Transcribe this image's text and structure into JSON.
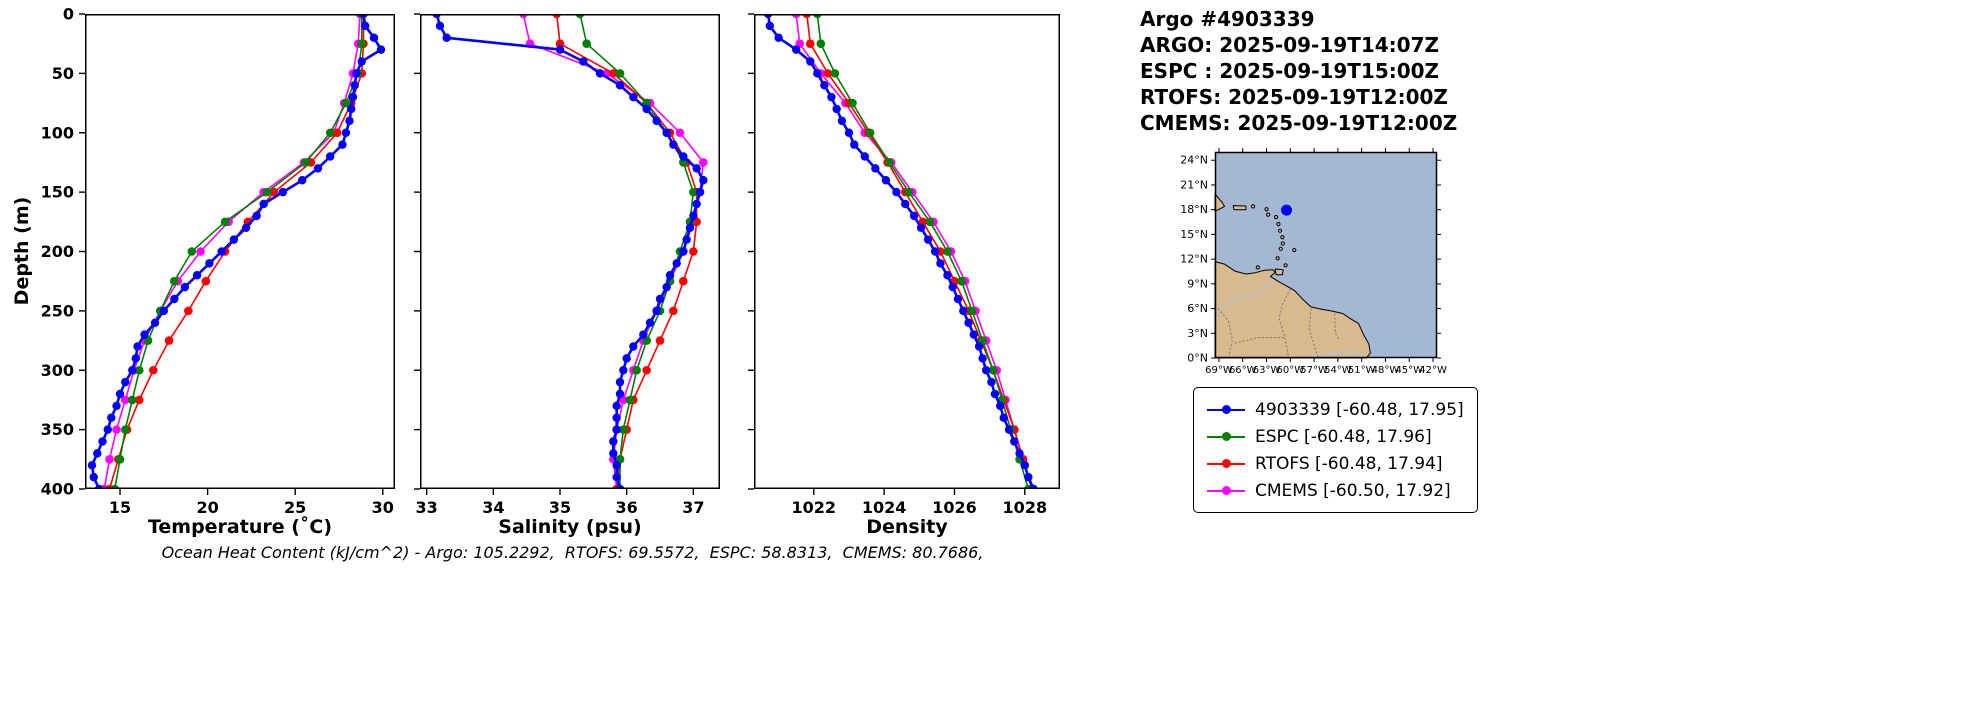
{
  "header": {
    "title": "Argo #4903339",
    "lines": [
      "ARGO: 2025-09-19T14:07Z",
      "ESPC : 2025-09-19T15:00Z",
      "RTOFS: 2025-09-19T12:00Z",
      "CMEMS: 2025-09-19T12:00Z"
    ]
  },
  "footer": {
    "text": "Ocean Heat Content (kJ/cm^2) - Argo: 105.2292,  RTOFS: 69.5572,  ESPC: 58.8313,  CMEMS: 80.7686,"
  },
  "legend": {
    "entries": [
      {
        "label": "4903339 [-60.48, 17.95]",
        "color": "#0000ff"
      },
      {
        "label": "ESPC [-60.48, 17.96]",
        "color": "#008000"
      },
      {
        "label": "RTOFS [-60.48, 17.94]",
        "color": "#ff0000"
      },
      {
        "label": "CMEMS [-60.50, 17.92]",
        "color": "#ff00ff"
      }
    ]
  },
  "chart_data": {
    "type": "line",
    "title": "Argo #4903339",
    "ylabel": "Depth (m)",
    "ylim": [
      0,
      400
    ],
    "yticks": [
      0,
      50,
      100,
      150,
      200,
      250,
      300,
      350,
      400
    ],
    "grid": false,
    "argo_depths": [
      0,
      10,
      20,
      30,
      40,
      50,
      60,
      70,
      80,
      90,
      100,
      110,
      120,
      130,
      140,
      150,
      160,
      170,
      180,
      190,
      200,
      210,
      220,
      230,
      240,
      250,
      260,
      270,
      280,
      290,
      300,
      310,
      320,
      330,
      340,
      350,
      360,
      370,
      380,
      390,
      400
    ],
    "model_depths": [
      0,
      25,
      50,
      75,
      100,
      125,
      150,
      175,
      200,
      225,
      250,
      275,
      300,
      325,
      350,
      375,
      400
    ],
    "panels": [
      {
        "xlabel": "Temperature (˚C)",
        "xlim": [
          13,
          30.7
        ],
        "xticks": [
          15,
          20,
          25,
          30
        ],
        "show_depth_labels": true,
        "series": [
          {
            "name": "4903339",
            "color": "#0000ff",
            "line_width": 2.6,
            "marker_size": 4.2,
            "depths_key": "argo_depths",
            "values": [
              28.9,
              29.0,
              29.5,
              29.9,
              28.8,
              28.5,
              28.4,
              28.3,
              28.2,
              28.1,
              27.9,
              27.7,
              27.0,
              26.3,
              25.4,
              24.3,
              23.2,
              22.8,
              22.2,
              21.5,
              20.8,
              20.1,
              19.4,
              18.7,
              18.1,
              17.5,
              17.0,
              16.4,
              16.0,
              15.9,
              15.7,
              15.3,
              15.0,
              14.8,
              14.5,
              14.3,
              14.0,
              13.7,
              13.4,
              13.5,
              13.8
            ]
          },
          {
            "name": "ESPC",
            "color": "#008000",
            "line_width": 1.6,
            "marker_size": 4.3,
            "depths_key": "model_depths",
            "values": [
              28.8,
              28.8,
              28.6,
              27.9,
              27.0,
              25.6,
              23.4,
              21.0,
              19.1,
              18.1,
              17.3,
              16.6,
              16.1,
              15.7,
              15.3,
              15.0,
              14.7
            ]
          },
          {
            "name": "RTOFS",
            "color": "#ff0000",
            "line_width": 1.6,
            "marker_size": 4.3,
            "depths_key": "model_depths",
            "values": [
              28.9,
              28.9,
              28.8,
              28.2,
              27.4,
              25.9,
              23.8,
              22.3,
              21.0,
              19.9,
              18.9,
              17.8,
              16.9,
              16.1,
              15.4,
              14.9,
              14.4
            ]
          },
          {
            "name": "CMEMS",
            "color": "#ff00ff",
            "line_width": 1.6,
            "marker_size": 4.3,
            "depths_key": "model_depths",
            "values": [
              28.7,
              28.6,
              28.3,
              27.8,
              27.2,
              25.5,
              23.2,
              21.2,
              19.6,
              18.3,
              17.3,
              16.4,
              15.8,
              15.3,
              14.8,
              14.4,
              14.1
            ]
          }
        ]
      },
      {
        "xlabel": "Salinity (psu)",
        "xlim": [
          32.9,
          37.4
        ],
        "xticks": [
          33,
          34,
          35,
          36,
          37
        ],
        "show_depth_labels": false,
        "series": [
          {
            "name": "4903339",
            "color": "#0000ff",
            "line_width": 2.6,
            "marker_size": 4.2,
            "depths_key": "argo_depths",
            "values": [
              33.15,
              33.2,
              33.3,
              35.0,
              35.35,
              35.6,
              35.9,
              36.1,
              36.3,
              36.45,
              36.6,
              36.7,
              36.85,
              37.05,
              37.15,
              37.1,
              37.05,
              37.0,
              36.95,
              36.9,
              36.85,
              36.75,
              36.65,
              36.6,
              36.5,
              36.45,
              36.35,
              36.25,
              36.1,
              36.0,
              35.95,
              35.9,
              35.9,
              35.85,
              35.85,
              35.85,
              35.8,
              35.8,
              35.85,
              35.85,
              35.9
            ]
          },
          {
            "name": "ESPC",
            "color": "#008000",
            "line_width": 1.6,
            "marker_size": 4.3,
            "depths_key": "model_depths",
            "values": [
              35.3,
              35.4,
              35.9,
              36.3,
              36.6,
              36.85,
              37.0,
              36.95,
              36.8,
              36.65,
              36.5,
              36.3,
              36.15,
              36.05,
              35.95,
              35.9,
              35.9
            ]
          },
          {
            "name": "RTOFS",
            "color": "#ff0000",
            "line_width": 1.6,
            "marker_size": 4.3,
            "depths_key": "model_depths",
            "values": [
              34.95,
              35.0,
              35.8,
              36.3,
              36.65,
              36.9,
              37.05,
              37.05,
              37.0,
              36.85,
              36.7,
              36.5,
              36.3,
              36.1,
              36.0,
              35.9,
              35.85
            ]
          },
          {
            "name": "CMEMS",
            "color": "#ff00ff",
            "line_width": 1.6,
            "marker_size": 4.3,
            "depths_key": "model_depths",
            "values": [
              34.45,
              34.55,
              35.7,
              36.35,
              36.8,
              37.15,
              37.1,
              37.0,
              36.85,
              36.65,
              36.45,
              36.25,
              36.1,
              35.95,
              35.85,
              35.8,
              35.85
            ]
          }
        ]
      },
      {
        "xlabel": "Density",
        "xlim": [
          1020.3,
          1029.0
        ],
        "xticks": [
          1022,
          1024,
          1026,
          1028
        ],
        "show_depth_labels": false,
        "series": [
          {
            "name": "4903339",
            "color": "#0000ff",
            "line_width": 2.6,
            "marker_size": 4.2,
            "depths_key": "argo_depths",
            "values": [
              1020.7,
              1020.75,
              1021.0,
              1021.5,
              1021.9,
              1022.1,
              1022.3,
              1022.5,
              1022.65,
              1022.8,
              1023.0,
              1023.15,
              1023.45,
              1023.75,
              1024.05,
              1024.35,
              1024.6,
              1024.85,
              1025.05,
              1025.25,
              1025.45,
              1025.6,
              1025.8,
              1025.95,
              1026.1,
              1026.25,
              1026.4,
              1026.55,
              1026.7,
              1026.8,
              1026.9,
              1027.05,
              1027.15,
              1027.3,
              1027.4,
              1027.55,
              1027.7,
              1027.85,
              1028.0,
              1028.1,
              1028.25
            ]
          },
          {
            "name": "ESPC",
            "color": "#008000",
            "line_width": 1.6,
            "marker_size": 4.3,
            "depths_key": "model_depths",
            "values": [
              1022.1,
              1022.2,
              1022.6,
              1023.1,
              1023.6,
              1024.15,
              1024.7,
              1025.3,
              1025.8,
              1026.2,
              1026.5,
              1026.8,
              1027.1,
              1027.35,
              1027.6,
              1027.85,
              1028.1
            ]
          },
          {
            "name": "RTOFS",
            "color": "#ff0000",
            "line_width": 1.6,
            "marker_size": 4.3,
            "depths_key": "model_depths",
            "values": [
              1021.8,
              1021.9,
              1022.4,
              1023.0,
              1023.55,
              1024.1,
              1024.6,
              1025.1,
              1025.6,
              1026.0,
              1026.4,
              1026.75,
              1027.1,
              1027.4,
              1027.7,
              1027.95,
              1028.2
            ]
          },
          {
            "name": "CMEMS",
            "color": "#ff00ff",
            "line_width": 1.6,
            "marker_size": 4.3,
            "depths_key": "model_depths",
            "values": [
              1021.5,
              1021.6,
              1022.2,
              1022.9,
              1023.45,
              1024.2,
              1024.8,
              1025.4,
              1025.9,
              1026.3,
              1026.6,
              1026.9,
              1027.2,
              1027.45,
              1027.7,
              1027.95,
              1028.2
            ]
          }
        ]
      }
    ]
  },
  "map": {
    "lon_range": [
      -69.5,
      -41.5
    ],
    "lat_range": [
      0,
      25
    ],
    "ocean_color": "#a4b7d3",
    "land_color": "#d9ba8f",
    "river_color": "#aac3e2",
    "border_color": "#6f6f6f",
    "float_marker": {
      "lon": -60.48,
      "lat": 17.95,
      "color": "#0000ff"
    },
    "lon_ticks": [
      {
        "v": -69,
        "label": "69°W"
      },
      {
        "v": -66,
        "label": "66°W"
      },
      {
        "v": -63,
        "label": "63°W"
      },
      {
        "v": -60,
        "label": "60°W"
      },
      {
        "v": -57,
        "label": "57°W"
      },
      {
        "v": -54,
        "label": "54°W"
      },
      {
        "v": -51,
        "label": "51°W"
      },
      {
        "v": -48,
        "label": "48°W"
      },
      {
        "v": -45,
        "label": "45°W"
      },
      {
        "v": -42,
        "label": "42°W"
      }
    ],
    "lat_ticks": [
      {
        "v": 0,
        "label": "0°N"
      },
      {
        "v": 3,
        "label": "3°N"
      },
      {
        "v": 6,
        "label": "6°N"
      },
      {
        "v": 9,
        "label": "9°N"
      },
      {
        "v": 12,
        "label": "12°N"
      },
      {
        "v": 15,
        "label": "15°N"
      },
      {
        "v": 18,
        "label": "18°N"
      },
      {
        "v": 21,
        "label": "21°N"
      },
      {
        "v": 24,
        "label": "24°N"
      }
    ],
    "land": [
      [
        -69.5,
        11.7
      ],
      [
        -68.3,
        11.4
      ],
      [
        -67.0,
        10.55
      ],
      [
        -65.6,
        10.2
      ],
      [
        -64.4,
        10.35
      ],
      [
        -63.2,
        10.65
      ],
      [
        -62.2,
        10.7
      ],
      [
        -61.9,
        10.4
      ],
      [
        -62.5,
        9.9
      ],
      [
        -61.5,
        9.3
      ],
      [
        -60.4,
        8.7
      ],
      [
        -59.5,
        8.2
      ],
      [
        -58.5,
        7.2
      ],
      [
        -57.4,
        6.2
      ],
      [
        -56.2,
        5.95
      ],
      [
        -54.8,
        5.7
      ],
      [
        -53.4,
        5.4
      ],
      [
        -52.3,
        4.7
      ],
      [
        -51.4,
        4.2
      ],
      [
        -50.8,
        2.9
      ],
      [
        -50.1,
        1.7
      ],
      [
        -49.9,
        0.6
      ],
      [
        -50.4,
        0.0
      ],
      [
        -69.5,
        0.0
      ]
    ],
    "islands": [
      [
        [
          -69.5,
          19.9
        ],
        [
          -68.6,
          18.9
        ],
        [
          -68.3,
          18.4
        ],
        [
          -69.5,
          17.8
        ]
      ],
      [
        [
          -67.2,
          18.5
        ],
        [
          -65.6,
          18.45
        ],
        [
          -65.6,
          18.0
        ],
        [
          -67.1,
          18.0
        ]
      ],
      [
        [
          -61.9,
          10.8
        ],
        [
          -60.9,
          10.7
        ],
        [
          -61.0,
          10.1
        ],
        [
          -61.8,
          10.1
        ]
      ],
      [
        [
          -64.7,
          18.4
        ]
      ],
      [
        [
          -63.0,
          18.05
        ]
      ],
      [
        [
          -62.8,
          17.4
        ]
      ],
      [
        [
          -61.8,
          17.1
        ]
      ],
      [
        [
          -61.5,
          16.25
        ]
      ],
      [
        [
          -61.3,
          15.45
        ]
      ],
      [
        [
          -61.0,
          14.65
        ]
      ],
      [
        [
          -60.95,
          13.9
        ]
      ],
      [
        [
          -61.2,
          13.25
        ]
      ],
      [
        [
          -61.6,
          12.1
        ]
      ],
      [
        [
          -59.5,
          13.1
        ]
      ],
      [
        [
          -64.1,
          11.0
        ]
      ],
      [
        [
          -60.6,
          11.25
        ]
      ]
    ],
    "borders": [
      [
        [
          -60.0,
          8.4
        ],
        [
          -61.0,
          6.5
        ],
        [
          -61.4,
          4.8
        ],
        [
          -60.7,
          2.5
        ],
        [
          -60.2,
          0.0
        ]
      ],
      [
        [
          -57.4,
          6.0
        ],
        [
          -57.6,
          3.5
        ],
        [
          -57.0,
          1.6
        ],
        [
          -56.5,
          0.0
        ]
      ],
      [
        [
          -54.4,
          5.4
        ],
        [
          -54.3,
          3.0
        ],
        [
          -53.8,
          2.2
        ]
      ],
      [
        [
          -67.0,
          1.8
        ],
        [
          -64.0,
          2.5
        ],
        [
          -60.7,
          2.5
        ]
      ],
      [
        [
          -67.8,
          0.0
        ],
        [
          -67.3,
          2.2
        ],
        [
          -67.8,
          4.5
        ],
        [
          -69.3,
          6.2
        ]
      ]
    ],
    "rivers": [
      [
        [
          -62.3,
          9.2
        ],
        [
          -64.5,
          7.8
        ],
        [
          -66.8,
          7.3
        ],
        [
          -68.2,
          6.4
        ],
        [
          -69.2,
          5.2
        ]
      ],
      [
        [
          -50.6,
          0.2
        ],
        [
          -53.0,
          0.8
        ],
        [
          -55.5,
          0.4
        ],
        [
          -58.0,
          0.1
        ]
      ]
    ]
  }
}
